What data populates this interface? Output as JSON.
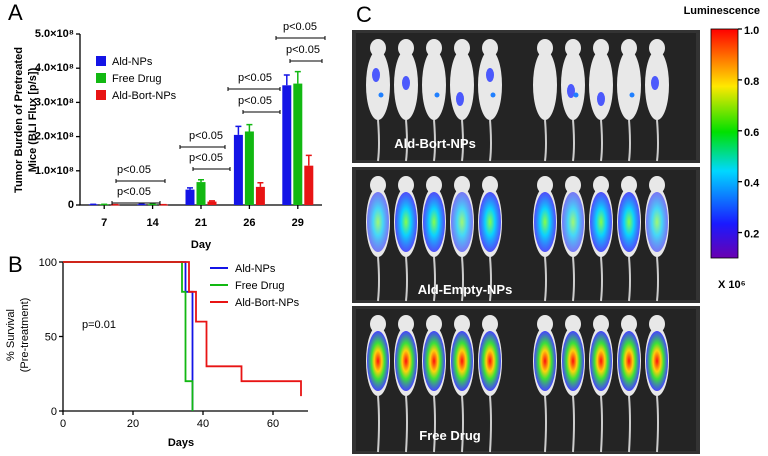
{
  "chart_data": [
    {
      "type": "bar",
      "panel": "A",
      "y_label": [
        "Tumor Burden of Pretreated",
        "Mice (BLI Flux [p/s])"
      ],
      "x_label": "Day",
      "categories": [
        "7",
        "14",
        "21",
        "26",
        "29"
      ],
      "series": [
        {
          "name": "Ald-NPs",
          "color": "#1414e6",
          "values": [
            2000000,
            2000000,
            45000000,
            205000000,
            350000000
          ],
          "errors": [
            0,
            0,
            5000000,
            25000000,
            30000000
          ]
        },
        {
          "name": "Free Drug",
          "color": "#12b812",
          "values": [
            2000000,
            2000000,
            67000000,
            215000000,
            355000000
          ],
          "errors": [
            0,
            0,
            7000000,
            20000000,
            35000000
          ]
        },
        {
          "name": "Ald-Bort-NPs",
          "color": "#e81414",
          "values": [
            1000000,
            1000000,
            10000000,
            53000000,
            115000000
          ],
          "errors": [
            0,
            0,
            2000000,
            12000000,
            30000000
          ]
        }
      ],
      "ylim": [
        0,
        500000000
      ],
      "yticks": [
        0,
        {
          "value": 100000000,
          "label": "1.0×10⁸"
        },
        {
          "value": 200000000,
          "label": "2.0×10⁸"
        },
        {
          "value": 300000000,
          "label": "3.0×10⁸"
        },
        {
          "value": 400000000,
          "label": "4.0×10⁸"
        },
        {
          "value": 500000000,
          "label": "5.0×10⁸"
        }
      ],
      "annotations": [
        "p<0.05",
        "p<0.05",
        "p<0.05",
        "p<0.05",
        "p<0.05",
        "p<0.05",
        "p<0.05",
        "p<0.05"
      ],
      "legend": "upper left"
    },
    {
      "type": "line",
      "panel": "B",
      "step": true,
      "y_label": [
        "% Survival",
        "(Pre-treatment)"
      ],
      "x_label": "Days",
      "series": [
        {
          "name": "Ald-NPs",
          "color": "#1414e6",
          "x": [
            0,
            35,
            37
          ],
          "values": [
            100,
            80,
            0
          ]
        },
        {
          "name": "Free Drug",
          "color": "#12b812",
          "x": [
            0,
            34,
            35,
            37
          ],
          "values": [
            100,
            80,
            20,
            0
          ]
        },
        {
          "name": "Ald-Bort-NPs",
          "color": "#e81414",
          "x": [
            0,
            36,
            38,
            41,
            51,
            68
          ],
          "values": [
            100,
            80,
            60,
            30,
            20,
            10
          ]
        }
      ],
      "xlim": [
        0,
        70
      ],
      "xticks": [
        0,
        20,
        40,
        60
      ],
      "ylim": [
        0,
        100
      ],
      "yticks": [
        0,
        50,
        100
      ],
      "annotation": "p=0.01",
      "legend": "upper right"
    },
    {
      "type": "colorbar",
      "panel": "C",
      "title": "Luminescence",
      "multiplier": "X 10⁶",
      "zlim": [
        0.1,
        1.0
      ],
      "ticks": [
        0.2,
        0.4,
        0.6,
        0.8,
        {
          "value": 1.0,
          "label": "1.0"
        }
      ],
      "groups": [
        "Ald-Bort-NPs",
        "Ald-Empty-NPs",
        "Free Drug"
      ]
    }
  ]
}
